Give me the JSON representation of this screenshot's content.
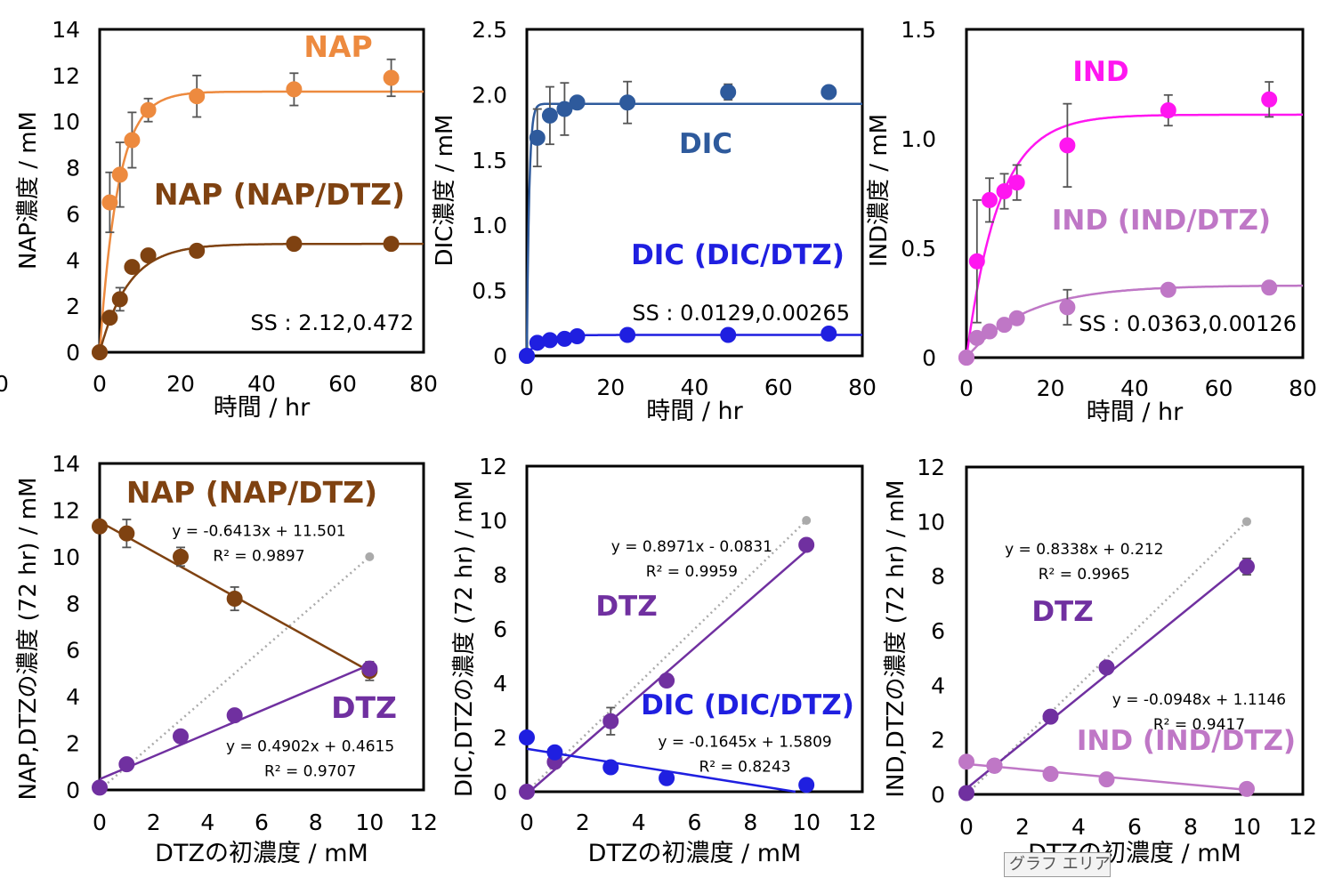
{
  "colors": {
    "NAP": "#ED8A3F",
    "NAP_DTZ": "#7F4211",
    "DIC": "#2E5A9C",
    "DIC_DTZ": "#1F1FE0",
    "IND": "#FF16F0",
    "IND_DTZ": "#BF77C6",
    "DTZ": "#7030A0",
    "ref": "#AAAAAA",
    "errorbar": "#555555",
    "axis": "#000000"
  },
  "tooltip": "グラフ エリア",
  "chart_data": [
    {
      "id": "c1",
      "type": "scatter",
      "xlim": [
        0,
        80
      ],
      "ylim": [
        0,
        14
      ],
      "xticks": [
        "0",
        "20",
        "40",
        "60",
        "80"
      ],
      "yticks": [
        "0",
        "2",
        "4",
        "6",
        "8",
        "10",
        "12",
        "14"
      ],
      "xlabel": "時間 / hr",
      "ylabel": "NAP濃度 / mM",
      "stray_tick": "0",
      "annotations": [
        {
          "text": "SS : 2.12,0.472",
          "type": "ss"
        }
      ],
      "series": [
        {
          "name": "NAP",
          "label": "NAP",
          "color_key": "NAP",
          "x": [
            0,
            2.5,
            5,
            8,
            12,
            24,
            48,
            72
          ],
          "y": [
            0,
            6.5,
            7.7,
            9.2,
            10.5,
            11.1,
            11.4,
            11.9
          ],
          "err": [
            0,
            1.3,
            1.4,
            1.2,
            0.5,
            0.9,
            0.7,
            0.8
          ],
          "fit": {
            "type": "exp",
            "A": 11.3,
            "k": 0.22,
            "shift": 0
          }
        },
        {
          "name": "NAP (NAP/DTZ)",
          "label": "NAP (NAP/DTZ)",
          "color_key": "NAP_DTZ",
          "x": [
            0,
            2.5,
            5,
            8,
            12,
            24,
            48,
            72
          ],
          "y": [
            0,
            1.5,
            2.3,
            3.7,
            4.2,
            4.4,
            4.7,
            4.7
          ],
          "err": [
            0,
            0,
            0.5,
            0,
            0,
            0,
            0,
            0
          ],
          "fit": {
            "type": "exp",
            "A": 4.7,
            "k": 0.14,
            "shift": 0
          }
        }
      ]
    },
    {
      "id": "c2",
      "type": "scatter",
      "xlim": [
        0,
        80
      ],
      "ylim": [
        0,
        2.5
      ],
      "xticks": [
        "0",
        "20",
        "40",
        "60",
        "80"
      ],
      "yticks": [
        "0",
        "0.5",
        "1.0",
        "1.5",
        "2.0",
        "2.5"
      ],
      "xlabel": "時間 / hr",
      "ylabel": "DIC濃度 / mM",
      "annotations": [
        {
          "text": "SS : 0.0129,0.00265",
          "type": "ss"
        }
      ],
      "series": [
        {
          "name": "DIC",
          "label": "DIC",
          "color_key": "DIC",
          "x": [
            0,
            2.5,
            5.5,
            9,
            12,
            24,
            48,
            72
          ],
          "y": [
            0,
            1.67,
            1.84,
            1.89,
            1.94,
            1.94,
            2.02,
            2.02
          ],
          "err": [
            0,
            0.22,
            0.22,
            0.2,
            0.03,
            0.16,
            0.06,
            0.04
          ],
          "fit": {
            "type": "exp",
            "A": 1.93,
            "k": 1.8,
            "shift": 0
          }
        },
        {
          "name": "DIC (DIC/DTZ)",
          "label": "DIC (DIC/DTZ)",
          "color_key": "DIC_DTZ",
          "x": [
            0,
            2.5,
            5.5,
            9,
            12,
            24,
            48,
            72
          ],
          "y": [
            0,
            0.1,
            0.12,
            0.13,
            0.15,
            0.16,
            0.16,
            0.17
          ],
          "err": [
            0,
            0,
            0,
            0,
            0,
            0,
            0,
            0
          ],
          "fit": {
            "type": "exp",
            "A": 0.15,
            "k": 0.3,
            "shift": 0.01
          }
        }
      ]
    },
    {
      "id": "c3",
      "type": "scatter",
      "xlim": [
        0,
        80
      ],
      "ylim": [
        0,
        1.5
      ],
      "xticks": [
        "0",
        "20",
        "40",
        "60",
        "80"
      ],
      "yticks": [
        "0",
        "0.5",
        "1.0",
        "1.5"
      ],
      "xlabel": "時間 / hr",
      "ylabel": "IND濃度 / mM",
      "annotations": [
        {
          "text": "SS : 0.0363,0.00126",
          "type": "ss"
        }
      ],
      "series": [
        {
          "name": "IND",
          "label": "IND",
          "color_key": "IND",
          "x": [
            0,
            2.5,
            5.5,
            9,
            12,
            24,
            48,
            72
          ],
          "y": [
            0,
            0.44,
            0.72,
            0.76,
            0.8,
            0.97,
            1.13,
            1.18
          ],
          "err": [
            0,
            0.28,
            0.1,
            0.08,
            0.08,
            0.19,
            0.07,
            0.08
          ],
          "fit": {
            "type": "exp",
            "A": 1.11,
            "k": 0.13,
            "shift": 0
          }
        },
        {
          "name": "IND (IND/DTZ)",
          "label": "IND (IND/DTZ)",
          "color_key": "IND_DTZ",
          "x": [
            0,
            2.5,
            5.5,
            9,
            12,
            24,
            48,
            72
          ],
          "y": [
            0,
            0.09,
            0.12,
            0.15,
            0.18,
            0.23,
            0.31,
            0.32
          ],
          "err": [
            0,
            0,
            0,
            0,
            0,
            0.08,
            0,
            0
          ],
          "fit": {
            "type": "exp",
            "A": 0.33,
            "k": 0.07,
            "shift": 0
          }
        }
      ]
    },
    {
      "id": "c4",
      "type": "scatter",
      "xlim": [
        0,
        12
      ],
      "ylim": [
        0,
        14
      ],
      "xticks": [
        "0",
        "2",
        "4",
        "6",
        "8",
        "10",
        "12"
      ],
      "yticks": [
        "0",
        "2",
        "4",
        "6",
        "8",
        "10",
        "12",
        "14"
      ],
      "xlabel": "DTZの初濃度 / mM",
      "ylabel": "NAP,DTZの濃度 (72 hr) / mM",
      "equations": [
        {
          "lines": [
            "y = -0.6413x + 11.501",
            "R² = 0.9897"
          ],
          "anchor": [
            5.9,
            10.9
          ]
        },
        {
          "lines": [
            "y = 0.4902x + 0.4615",
            "R² = 0.9707"
          ],
          "anchor": [
            7.8,
            1.65
          ]
        }
      ],
      "reference": {
        "x": [
          0,
          10
        ],
        "y": [
          0,
          10
        ]
      },
      "series": [
        {
          "name": "NAP (NAP/DTZ)",
          "label": "NAP (NAP/DTZ)",
          "color_key": "NAP_DTZ",
          "x": [
            0,
            1,
            3,
            5,
            10
          ],
          "y": [
            11.3,
            11.0,
            10.0,
            8.2,
            5.1
          ],
          "err": [
            0,
            0.6,
            0.4,
            0.5,
            0.4
          ],
          "fit": {
            "type": "linear",
            "m": -0.6413,
            "b": 11.501,
            "range": [
              0,
              10
            ]
          }
        },
        {
          "name": "DTZ",
          "label": "DTZ",
          "color_key": "DTZ",
          "x": [
            0,
            1,
            3,
            5,
            10
          ],
          "y": [
            0.1,
            1.1,
            2.3,
            3.2,
            5.2
          ],
          "err": [
            0,
            0,
            0,
            0,
            0
          ],
          "fit": {
            "type": "linear",
            "m": 0.4902,
            "b": 0.4615,
            "range": [
              0,
              10
            ]
          }
        }
      ]
    },
    {
      "id": "c5",
      "type": "scatter",
      "xlim": [
        0,
        12
      ],
      "ylim": [
        0,
        12
      ],
      "xticks": [
        "0",
        "2",
        "4",
        "6",
        "8",
        "10",
        "12"
      ],
      "yticks": [
        "0",
        "2",
        "4",
        "6",
        "8",
        "10",
        "12"
      ],
      "xlabel": "DTZの初濃度 / mM",
      "ylabel": "DIC,DTZの濃度 (72 hr) / mM",
      "equations": [
        {
          "lines": [
            "y = 0.8971x - 0.0831",
            "R² = 0.9959"
          ],
          "anchor": [
            5.9,
            8.85
          ]
        },
        {
          "lines": [
            "y = -0.1645x + 1.5809",
            "R² = 0.8243"
          ],
          "anchor": [
            7.8,
            1.65
          ]
        }
      ],
      "reference": {
        "x": [
          0,
          10
        ],
        "y": [
          0,
          10
        ]
      },
      "series": [
        {
          "name": "DTZ",
          "label": "DTZ",
          "color_key": "DTZ",
          "x": [
            0,
            1,
            3,
            5,
            10
          ],
          "y": [
            0,
            1.1,
            2.6,
            4.1,
            9.1
          ],
          "err": [
            0,
            0,
            0.5,
            0,
            0
          ],
          "fit": {
            "type": "linear",
            "m": 0.8971,
            "b": -0.0831,
            "range": [
              0,
              10
            ]
          }
        },
        {
          "name": "DIC (DIC/DTZ)",
          "label": "DIC (DIC/DTZ)",
          "color_key": "DIC_DTZ",
          "x": [
            0,
            1,
            3,
            5,
            10
          ],
          "y": [
            2.0,
            1.45,
            0.9,
            0.5,
            0.25
          ],
          "err": [
            0,
            0,
            0,
            0,
            0
          ],
          "fit": {
            "type": "linear",
            "m": -0.1645,
            "b": 1.5809,
            "range": [
              0,
              9.61
            ]
          }
        }
      ]
    },
    {
      "id": "c6",
      "type": "scatter",
      "xlim": [
        0,
        12
      ],
      "ylim": [
        0,
        12
      ],
      "xticks": [
        "0",
        "2",
        "4",
        "6",
        "8",
        "10",
        "12"
      ],
      "yticks": [
        "0",
        "2",
        "4",
        "6",
        "8",
        "10",
        "12"
      ],
      "xlabel": "DTZの初濃度 / mM",
      "ylabel": "IND,DTZの濃度 (72 hr) / mM",
      "equations": [
        {
          "lines": [
            "y = 0.8338x + 0.212",
            "R² = 0.9965"
          ],
          "anchor": [
            4.2,
            8.8
          ]
        },
        {
          "lines": [
            "y = -0.0948x + 1.1146",
            "R² = 0.9417"
          ],
          "anchor": [
            8.3,
            3.3
          ]
        }
      ],
      "reference": {
        "x": [
          0,
          10
        ],
        "y": [
          0,
          10
        ]
      },
      "series": [
        {
          "name": "DTZ",
          "label": "DTZ",
          "color_key": "DTZ",
          "x": [
            0,
            1,
            3,
            5,
            10
          ],
          "y": [
            0.05,
            1.05,
            2.85,
            4.65,
            8.35
          ],
          "err": [
            0,
            0,
            0,
            0,
            0.3
          ],
          "fit": {
            "type": "linear",
            "m": 0.8338,
            "b": 0.212,
            "range": [
              0,
              10
            ]
          }
        },
        {
          "name": "IND (IND/DTZ)",
          "label": "IND (IND/DTZ)",
          "color_key": "IND_DTZ",
          "x": [
            0,
            1,
            3,
            5,
            10
          ],
          "y": [
            1.2,
            1.05,
            0.75,
            0.55,
            0.2
          ],
          "err": [
            0,
            0,
            0,
            0,
            0
          ],
          "fit": {
            "type": "linear",
            "m": -0.0948,
            "b": 1.1146,
            "range": [
              0,
              10
            ]
          }
        }
      ]
    }
  ]
}
